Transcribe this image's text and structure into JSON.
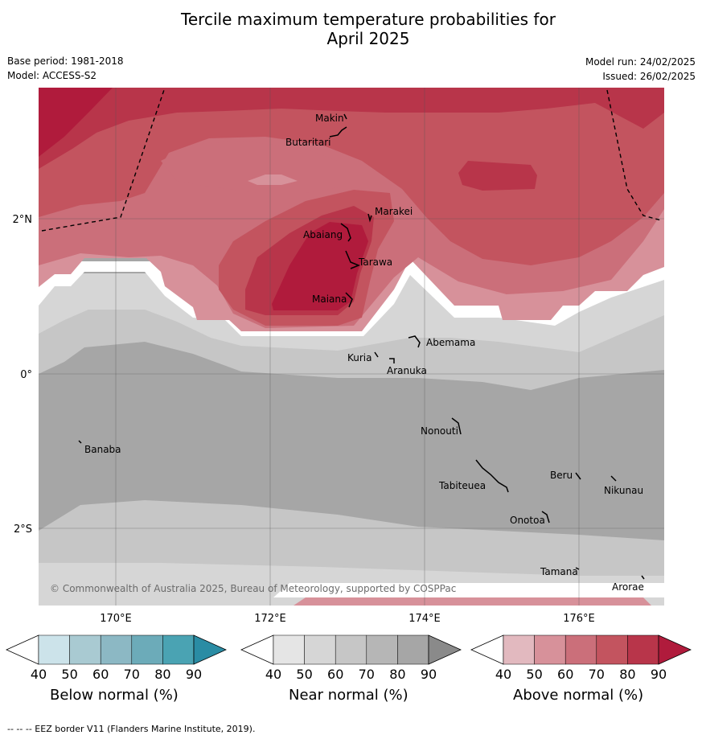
{
  "title_line1": "Tercile maximum temperature probabilities for",
  "title_line2": "April 2025",
  "base_period": "Base period: 1981-2018",
  "model": "Model: ACCESS-S2",
  "model_run": "Model run: 24/02/2025",
  "issued": "Issued: 26/02/2025",
  "lat_labels": [
    "2°N",
    "0°",
    "2°S"
  ],
  "lon_labels": [
    "170°E",
    "172°E",
    "174°E",
    "176°E"
  ],
  "places": [
    "Makin",
    "Butaritari",
    "Marakei",
    "Abaiang",
    "Tarawa",
    "Maiana",
    "Abemama",
    "Kuria",
    "Aranuka",
    "Nonouti",
    "Banaba",
    "Beru",
    "Nikunau",
    "Tabiteuea",
    "Onotoa",
    "Tamana",
    "Arorae"
  ],
  "copyright": "© Commonwealth of Australia 2025, Bureau of Meteorology, supported by COSPPac",
  "colorbars": [
    {
      "title": "Below normal (%)",
      "ticks": [
        "40",
        "50",
        "60",
        "70",
        "80",
        "90"
      ],
      "colors": [
        "#ffffff",
        "#cce3ea",
        "#a9cad2",
        "#8cb8c4",
        "#6cabb9",
        "#4aa3b3",
        "#2a8ca4"
      ]
    },
    {
      "title": "Near normal (%)",
      "ticks": [
        "40",
        "50",
        "60",
        "70",
        "80",
        "90"
      ],
      "colors": [
        "#ffffff",
        "#e5e5e5",
        "#d6d6d6",
        "#c6c6c6",
        "#b6b6b6",
        "#a6a6a6",
        "#8a8a8a"
      ]
    },
    {
      "title": "Above normal (%)",
      "ticks": [
        "40",
        "50",
        "60",
        "70",
        "80",
        "90"
      ],
      "colors": [
        "#ffffff",
        "#e2b9bf",
        "#d7919a",
        "#cb6f7a",
        "#c3545f",
        "#b8354a",
        "#b01b3c"
      ]
    }
  ],
  "footer": "--  --  -- EEZ border V11 (Flanders Marine Institute, 2019).",
  "colors": {
    "near50": "#d6d6d6",
    "near60": "#c6c6c6",
    "near70": "#a6a6a6",
    "above50": "#d7919a",
    "above60": "#cb6f7a",
    "above70": "#c3545f",
    "above80": "#b8354a",
    "above90": "#b01b3c"
  }
}
